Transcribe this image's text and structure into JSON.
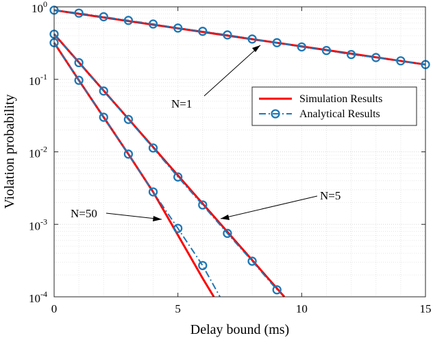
{
  "chart_data": {
    "type": "line",
    "title": "",
    "xlabel": "Delay bound (ms)",
    "ylabel": "Violation probability",
    "xlim": [
      0,
      15
    ],
    "ylim": [
      0.0001,
      1
    ],
    "yscale": "log",
    "grid": true,
    "legend_position": "right",
    "x_ticks": [
      0,
      5,
      10,
      15
    ],
    "y_ticks": [
      {
        "value": 1,
        "base": "10",
        "exp": "0"
      },
      {
        "value": 0.1,
        "base": "10",
        "exp": "-1"
      },
      {
        "value": 0.01,
        "base": "10",
        "exp": "-2"
      },
      {
        "value": 0.001,
        "base": "10",
        "exp": "-3"
      },
      {
        "value": 0.0001,
        "base": "10",
        "exp": "-4"
      }
    ],
    "legend": [
      {
        "label": "Simulation Results",
        "color": "#ff0000",
        "style": "solid"
      },
      {
        "label": "Analytical Results",
        "color": "#1f77b4",
        "style": "dash-dot-circle"
      }
    ],
    "colors": {
      "simulation": "#ff0000",
      "analytical": "#1f77b4"
    },
    "groups": [
      {
        "label": "N=1",
        "simulation": {
          "x": [
            0,
            15
          ],
          "y": [
            0.9,
            0.16
          ]
        },
        "analytical": {
          "x": [
            0,
            1,
            2,
            3,
            4,
            5,
            6,
            7,
            8,
            9,
            10,
            11,
            12,
            13,
            14,
            15
          ],
          "y": [
            0.9,
            0.82,
            0.73,
            0.65,
            0.58,
            0.51,
            0.46,
            0.41,
            0.36,
            0.32,
            0.28,
            0.25,
            0.22,
            0.2,
            0.18,
            0.16
          ]
        }
      },
      {
        "label": "N=5",
        "simulation": {
          "x": [
            0,
            9.3
          ],
          "y": [
            0.42,
            0.0001
          ]
        },
        "analytical": {
          "x": [
            0,
            1,
            2,
            3,
            4,
            5,
            6,
            7,
            8,
            9
          ],
          "y": [
            0.42,
            0.17,
            0.069,
            0.028,
            0.0113,
            0.0045,
            0.00185,
            0.00075,
            0.00031,
            0.000125
          ]
        }
      },
      {
        "label": "N=50",
        "simulation": {
          "x": [
            0,
            1,
            2,
            3,
            4,
            5,
            6,
            6.45
          ],
          "y": [
            0.32,
            0.097,
            0.03,
            0.0093,
            0.0028,
            0.00071,
            0.00018,
            0.0001
          ]
        },
        "analytical": {
          "x": [
            0,
            1,
            2,
            3,
            4,
            5,
            6,
            6.7
          ],
          "y": [
            0.32,
            0.097,
            0.03,
            0.0093,
            0.0028,
            0.00088,
            0.00027,
            0.0001
          ],
          "marker_x": [
            0,
            1,
            2,
            3,
            4,
            5,
            6
          ]
        }
      }
    ]
  }
}
